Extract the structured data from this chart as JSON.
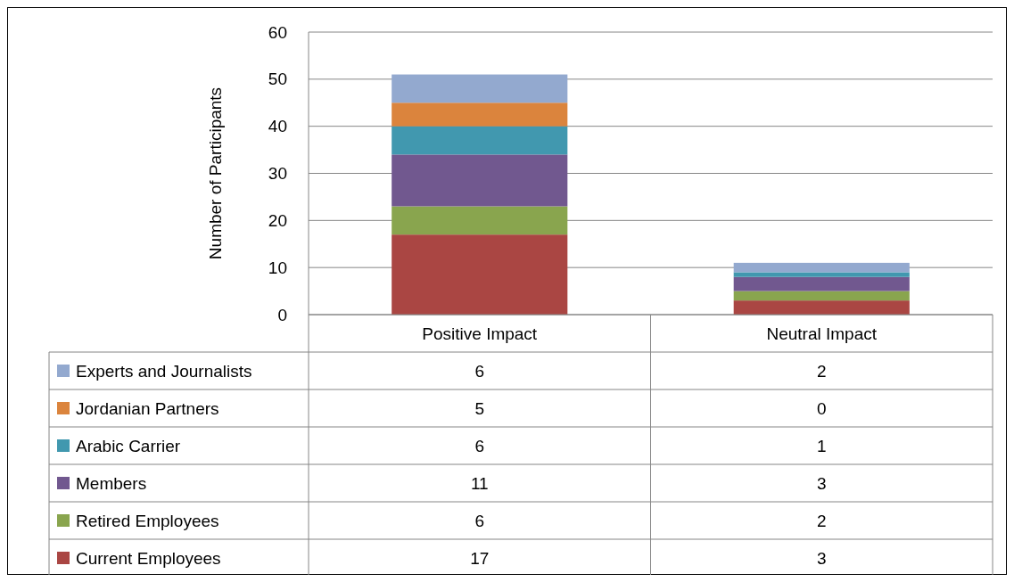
{
  "chart_data": {
    "type": "bar",
    "stacked": true,
    "ylabel": "Number of Participants",
    "categories": [
      "Positive Impact",
      "Neutral Impact"
    ],
    "series": [
      {
        "name": "Current Employees",
        "color": "#aa4643",
        "values": [
          17,
          3
        ],
        "value_labels": [
          "17",
          "3"
        ]
      },
      {
        "name": "Retired Employees",
        "color": "#89a54e",
        "values": [
          6,
          2
        ],
        "value_labels": [
          "6",
          "2"
        ]
      },
      {
        "name": "Members",
        "color": "#71588f",
        "values": [
          11,
          3
        ],
        "value_labels": [
          "11",
          "3"
        ]
      },
      {
        "name": "Arabic Carrier",
        "color": "#4198af",
        "values": [
          6,
          1
        ],
        "value_labels": [
          "6",
          "1"
        ]
      },
      {
        "name": "Jordanian Partners",
        "color": "#db843d",
        "values": [
          5,
          0
        ],
        "value_labels": [
          "5",
          "0"
        ]
      },
      {
        "name": "Experts and Journalists",
        "color": "#93a9cf",
        "values": [
          6,
          2
        ],
        "value_labels": [
          "6",
          "2"
        ]
      }
    ],
    "ylim": [
      0,
      60
    ],
    "yticks": [
      0,
      10,
      20,
      30,
      40,
      50,
      60
    ],
    "grid": "y",
    "legend": "bottom"
  }
}
